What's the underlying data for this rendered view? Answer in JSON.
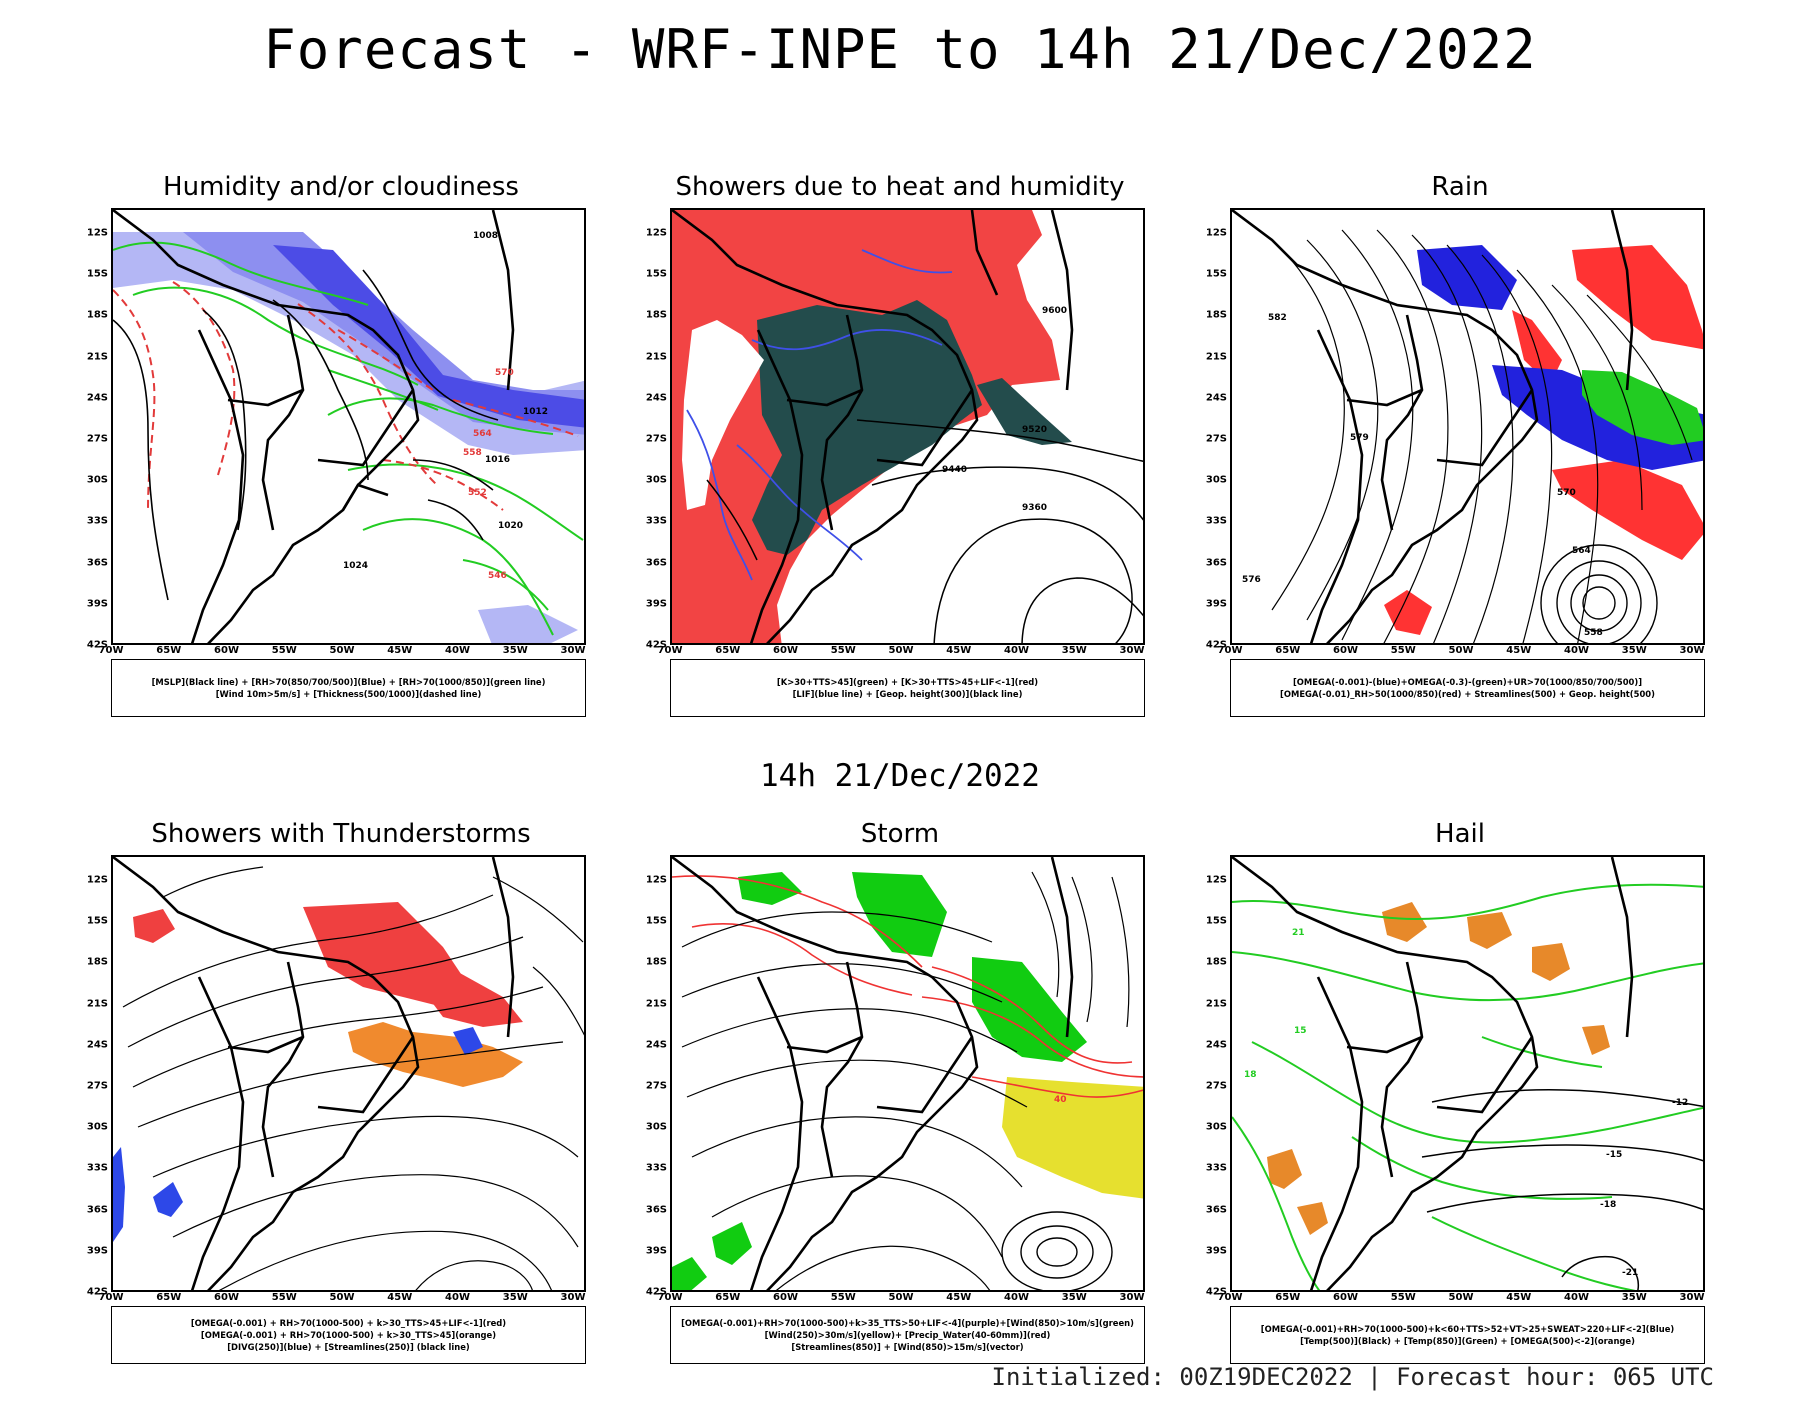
{
  "header": {
    "title": "Forecast - WRF-INPE to 14h 21/Dec/2022",
    "subtitle": "14h 21/Dec/2022",
    "footer": "Initialized: 00Z19DEC2022 | Forecast hour: 065 UTC"
  },
  "axes": {
    "lat_labels": [
      "12S",
      "15S",
      "18S",
      "21S",
      "24S",
      "27S",
      "30S",
      "33S",
      "36S",
      "39S",
      "42S"
    ],
    "lon_labels": [
      "70W",
      "65W",
      "60W",
      "55W",
      "50W",
      "45W",
      "40W",
      "35W",
      "30W"
    ]
  },
  "colors": {
    "background": "#ffffff",
    "mslp_black": "#000000",
    "cloud_light_blue": "#b4b7f5",
    "cloud_mid_blue": "#8d8ff0",
    "cloud_blue": "#4c4ce6",
    "humidity_green": "#22cc22",
    "thickness_red": "#e23a3a",
    "showers_red": "#f24444",
    "showers_dark_green": "#234c4c",
    "lif_blue": "#3f50e8",
    "rain_green": "#22cc22",
    "rain_blue": "#2222dd",
    "rain_red": "#ff3333",
    "storm_green": "#11cc11",
    "storm_yellow": "#e6e02f",
    "storm_red": "#ef3333",
    "hail_orange": "#e7892a",
    "hail_green": "#22cc22",
    "thunder_orange": "#f08a2e"
  },
  "panels": [
    {
      "id": "humidity",
      "title": "Humidity and/or cloudiness",
      "legend": [
        "[MSLP](Black line) + [RH>70(850/700/500)](Blue) + [RH>70(1000/850)](green line)",
        "[Wind 10m>5m/s] + [Thickness(500/1000)](dashed line)"
      ],
      "contour_labels": [
        "1008",
        "1012",
        "1016",
        "1020",
        "1024",
        "570",
        "564",
        "558",
        "552",
        "546"
      ]
    },
    {
      "id": "showers",
      "title": "Showers due to heat and humidity",
      "legend": [
        "[K>30+TTS>45](green) + [K>30+TTS>45+LIF<-1](red)",
        "[LIF](blue line) + [Geop. height(300)](black line)"
      ],
      "contour_labels": [
        "9600",
        "9520",
        "9440",
        "9360"
      ]
    },
    {
      "id": "rain",
      "title": "Rain",
      "legend": [
        "[OMEGA(-0.001)-(blue)+OMEGA(-0.3)-(green)+UR>70(1000/850/700/500)]",
        "[OMEGA(-0.01)_RH>50(1000/850)(red) + Streamlines(500) + Geop. height(500)"
      ],
      "contour_labels": [
        "582",
        "579",
        "576",
        "570",
        "564",
        "558"
      ]
    },
    {
      "id": "thunderstorms",
      "title": "Showers with Thunderstorms",
      "legend": [
        "[OMEGA(-0.001) + RH>70(1000-500) + k>30_TTS>45+LIF<-1](red)",
        "[OMEGA(-0.001) + RH>70(1000-500) + k>30_TTS>45](orange)",
        "[DIVG(250)](blue) + [Streamlines(250)] (black line)"
      ],
      "contour_labels": []
    },
    {
      "id": "storm",
      "title": "Storm",
      "legend": [
        "[OMEGA(-0.001)+RH>70(1000-500)+k>35_TTS>50+LIF<-4](purple)+[Wind(850)>10m/s](green)",
        "[Wind(250)>30m/s](yellow)+ [Precip_Water(40-60mm)](red)",
        "[Streamlines(850)] + [Wind(850)>15m/s](vector)"
      ],
      "contour_labels": [
        "40"
      ]
    },
    {
      "id": "hail",
      "title": "Hail",
      "legend": [
        "[OMEGA(-0.001)+RH>70(1000-500)+k<60+TTS>52+VT>25+SWEAT>220+LIF<-2](Blue)",
        "[Temp(500)](Black) + [Temp(850)](Green) + [OMEGA(500)<-2](orange)"
      ],
      "contour_labels": [
        "-12",
        "-15",
        "-18",
        "-21",
        "15",
        "18",
        "21"
      ]
    }
  ]
}
